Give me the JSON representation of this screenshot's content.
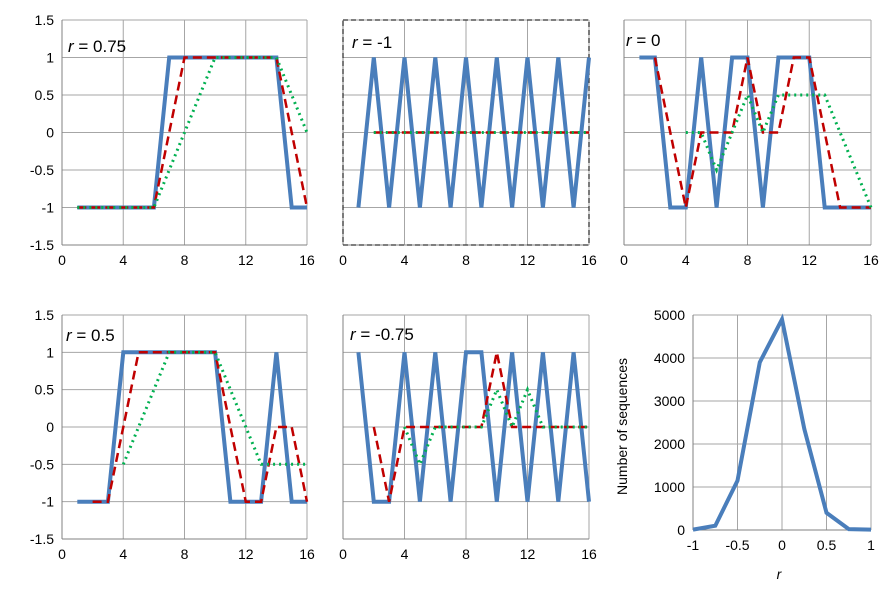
{
  "colors": {
    "blue": "#4a7ebb",
    "red": "#c00000",
    "green": "#00b050",
    "grid": "#a6a6a6"
  },
  "chart_data": [
    {
      "type": "line",
      "annotation": {
        "italic": "r",
        "rest": " = 0.75"
      },
      "xlim": [
        0,
        16
      ],
      "ylim": [
        -1.5,
        1.5
      ],
      "xticks": [
        "0",
        "4",
        "8",
        "12",
        "16"
      ],
      "yticks": [
        "1.5",
        "1",
        "0.5",
        "0",
        "-0.5",
        "-1",
        "-1.5"
      ],
      "series": [
        {
          "style": "solid",
          "color": "blue",
          "x": [
            1,
            2,
            3,
            4,
            5,
            6,
            7,
            8,
            9,
            10,
            11,
            12,
            13,
            14,
            15,
            16
          ],
          "y": [
            -1,
            -1,
            -1,
            -1,
            -1,
            -1,
            1,
            1,
            1,
            1,
            1,
            1,
            1,
            1,
            -1,
            -1
          ]
        },
        {
          "style": "dashed",
          "color": "red",
          "x": [
            1,
            2,
            3,
            4,
            5,
            6,
            7,
            8,
            9,
            10,
            11,
            12,
            13,
            14,
            15,
            16
          ],
          "y": [
            -1,
            -1,
            -1,
            -1,
            -1,
            -1,
            0,
            1,
            1,
            1,
            1,
            1,
            1,
            1,
            0,
            -1
          ]
        },
        {
          "style": "dotted",
          "color": "green",
          "x": [
            1,
            2,
            3,
            4,
            5,
            6,
            7,
            8,
            9,
            10,
            11,
            12,
            13,
            14,
            15,
            16
          ],
          "y": [
            -1,
            -1,
            -1,
            -1,
            -1,
            -1,
            -0.5,
            0,
            0.5,
            1,
            1,
            1,
            1,
            1,
            0.5,
            0
          ]
        }
      ]
    },
    {
      "type": "line",
      "annotation": {
        "italic": "r",
        "rest": " = -1"
      },
      "dashed_border": true,
      "xlim": [
        0,
        16
      ],
      "ylim": [
        -1.5,
        1.5
      ],
      "xticks": [
        "0",
        "4",
        "8",
        "12",
        "16"
      ],
      "yticks": [],
      "series": [
        {
          "style": "solid",
          "color": "blue",
          "x": [
            1,
            2,
            3,
            4,
            5,
            6,
            7,
            8,
            9,
            10,
            11,
            12,
            13,
            14,
            15,
            16
          ],
          "y": [
            -1,
            1,
            -1,
            1,
            -1,
            1,
            -1,
            1,
            -1,
            1,
            -1,
            1,
            -1,
            1,
            -1,
            1
          ]
        },
        {
          "style": "dashed",
          "color": "red",
          "x": [
            2,
            3,
            4,
            5,
            6,
            7,
            8,
            9,
            10,
            11,
            12,
            13,
            14,
            15,
            16
          ],
          "y": [
            0,
            0,
            0,
            0,
            0,
            0,
            0,
            0,
            0,
            0,
            0,
            0,
            0,
            0,
            0
          ]
        },
        {
          "style": "dotted",
          "color": "green",
          "x": [
            2,
            3,
            4,
            5,
            6,
            7,
            8,
            9,
            10,
            11,
            12,
            13,
            14,
            15,
            16
          ],
          "y": [
            0,
            0,
            0,
            0,
            0,
            0,
            0,
            0,
            0,
            0,
            0,
            0,
            0,
            0,
            0
          ]
        }
      ]
    },
    {
      "type": "line",
      "annotation": {
        "italic": "r",
        "rest": " = 0"
      },
      "xlim": [
        0,
        16
      ],
      "ylim": [
        -1.5,
        1.5
      ],
      "xticks": [
        "0",
        "4",
        "8",
        "12",
        "16"
      ],
      "yticks": [],
      "series": [
        {
          "style": "solid",
          "color": "blue",
          "x": [
            1,
            2,
            3,
            4,
            5,
            6,
            7,
            8,
            9,
            10,
            11,
            12,
            13,
            14,
            15,
            16
          ],
          "y": [
            1,
            1,
            -1,
            -1,
            1,
            -1,
            1,
            1,
            -1,
            1,
            1,
            1,
            -1,
            -1,
            -1,
            -1
          ]
        },
        {
          "style": "dashed",
          "color": "red",
          "x": [
            2,
            3,
            4,
            5,
            6,
            7,
            8,
            9,
            10,
            11,
            12,
            13,
            14,
            15,
            16
          ],
          "y": [
            1,
            0,
            -1,
            0,
            0,
            0,
            1,
            0,
            0,
            1,
            1,
            0,
            -1,
            -1,
            -1
          ]
        },
        {
          "style": "dotted",
          "color": "green",
          "x": [
            4,
            5,
            6,
            7,
            8,
            9,
            10,
            11,
            12,
            13,
            14,
            15,
            16
          ],
          "y": [
            0,
            0,
            -0.5,
            0,
            0.5,
            0,
            0.5,
            0.5,
            0.5,
            0.5,
            0,
            -0.5,
            -1
          ]
        }
      ]
    },
    {
      "type": "line",
      "annotation": {
        "italic": "r",
        "rest": " = 0.5"
      },
      "xlim": [
        0,
        16
      ],
      "ylim": [
        -1.5,
        1.5
      ],
      "xticks": [
        "0",
        "4",
        "8",
        "12",
        "16"
      ],
      "yticks": [
        "1.5",
        "1",
        "0.5",
        "0",
        "-0.5",
        "-1",
        "-1.5"
      ],
      "series": [
        {
          "style": "solid",
          "color": "blue",
          "x": [
            1,
            2,
            3,
            4,
            5,
            6,
            7,
            8,
            9,
            10,
            11,
            12,
            13,
            14,
            15,
            16
          ],
          "y": [
            -1,
            -1,
            -1,
            1,
            1,
            1,
            1,
            1,
            1,
            1,
            -1,
            -1,
            -1,
            1,
            -1,
            -1
          ]
        },
        {
          "style": "dashed",
          "color": "red",
          "x": [
            2,
            3,
            4,
            5,
            6,
            7,
            8,
            9,
            10,
            11,
            12,
            13,
            14,
            15,
            16
          ],
          "y": [
            -1,
            -1,
            0,
            1,
            1,
            1,
            1,
            1,
            1,
            0,
            -1,
            -1,
            0,
            0,
            -1
          ]
        },
        {
          "style": "dotted",
          "color": "green",
          "x": [
            4,
            5,
            6,
            7,
            8,
            9,
            10,
            11,
            12,
            13,
            14,
            15,
            16
          ],
          "y": [
            -0.5,
            0,
            0.5,
            1,
            1,
            1,
            1,
            0.5,
            0,
            -0.5,
            -0.5,
            -0.5,
            -0.5
          ]
        }
      ]
    },
    {
      "type": "line",
      "annotation": {
        "italic": "r",
        "rest": " = -0.75"
      },
      "xlim": [
        0,
        16
      ],
      "ylim": [
        -1.5,
        1.5
      ],
      "xticks": [
        "0",
        "4",
        "8",
        "12",
        "16"
      ],
      "yticks": [],
      "series": [
        {
          "style": "solid",
          "color": "blue",
          "x": [
            1,
            2,
            3,
            4,
            5,
            6,
            7,
            8,
            9,
            10,
            11,
            12,
            13,
            14,
            15,
            16
          ],
          "y": [
            1,
            -1,
            -1,
            1,
            -1,
            1,
            -1,
            1,
            1,
            -1,
            1,
            -1,
            1,
            -1,
            1,
            -1
          ]
        },
        {
          "style": "dashed",
          "color": "red",
          "x": [
            2,
            3,
            4,
            5,
            6,
            7,
            8,
            9,
            10,
            11,
            12,
            13,
            14,
            15,
            16
          ],
          "y": [
            0,
            -1,
            0,
            0,
            0,
            0,
            0,
            0,
            1,
            0,
            0,
            0,
            0,
            0,
            0
          ]
        },
        {
          "style": "dotted",
          "color": "green",
          "x": [
            4,
            5,
            6,
            7,
            8,
            9,
            10,
            11,
            12,
            13,
            14,
            15,
            16
          ],
          "y": [
            0,
            -0.5,
            0,
            0,
            0,
            0,
            0.5,
            0,
            0.5,
            0,
            0,
            0,
            0
          ]
        }
      ]
    },
    {
      "type": "line",
      "xlabel": "r",
      "ylabel": "Number of sequences",
      "xlim": [
        -1,
        1
      ],
      "ylim": [
        0,
        5000
      ],
      "xticks": [
        "-1",
        "-0.5",
        "0",
        "0.5",
        "1"
      ],
      "yticks": [
        "5000",
        "4000",
        "3000",
        "2000",
        "1000",
        "0"
      ],
      "series": [
        {
          "style": "solid",
          "color": "blue",
          "x": [
            -1,
            -0.75,
            -0.5,
            -0.25,
            0,
            0.25,
            0.5,
            0.75,
            1
          ],
          "y": [
            10,
            100,
            1150,
            3900,
            4900,
            2350,
            400,
            20,
            10
          ]
        }
      ]
    }
  ]
}
